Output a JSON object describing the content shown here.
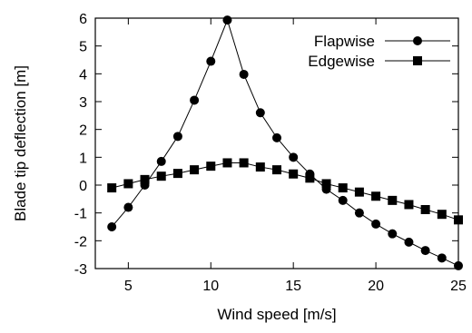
{
  "chart_data": {
    "type": "line",
    "title": "",
    "xlabel": "Wind speed [m/s]",
    "ylabel": "Blade tip deflection [m]",
    "xlim": [
      3,
      25
    ],
    "ylim": [
      -3,
      6
    ],
    "xticks": [
      5,
      10,
      15,
      20,
      25
    ],
    "yticks": [
      -3,
      -2,
      -1,
      0,
      1,
      2,
      3,
      4,
      5,
      6
    ],
    "grid": false,
    "legend_position": "top-right",
    "x": [
      4,
      5,
      6,
      7,
      8,
      9,
      10,
      11,
      12,
      13,
      14,
      15,
      16,
      17,
      18,
      19,
      20,
      21,
      22,
      23,
      24,
      25
    ],
    "series": [
      {
        "name": "Flapwise",
        "marker": "circle",
        "color": "#000000",
        "values": [
          -1.5,
          -0.8,
          0.0,
          0.85,
          1.75,
          3.05,
          4.45,
          5.93,
          3.98,
          2.6,
          1.7,
          1.0,
          0.4,
          -0.15,
          -0.55,
          -1.0,
          -1.4,
          -1.75,
          -2.05,
          -2.35,
          -2.62,
          -2.9
        ]
      },
      {
        "name": "Edgewise",
        "marker": "square",
        "color": "#000000",
        "values": [
          -0.1,
          0.05,
          0.2,
          0.32,
          0.42,
          0.55,
          0.68,
          0.8,
          0.8,
          0.65,
          0.55,
          0.4,
          0.25,
          0.05,
          -0.1,
          -0.25,
          -0.4,
          -0.55,
          -0.7,
          -0.88,
          -1.05,
          -1.25
        ]
      }
    ]
  }
}
